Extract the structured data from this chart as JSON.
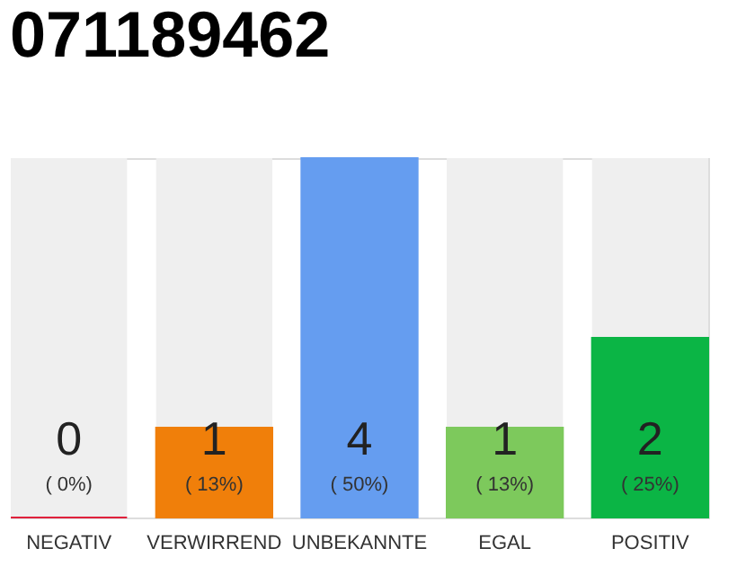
{
  "chart_data": {
    "type": "bar",
    "title": "071189462",
    "categories": [
      "NEGATIV",
      "VERWIRREND",
      "UNBEKANNTE",
      "EGAL",
      "POSITIV"
    ],
    "values": [
      0,
      1,
      4,
      1,
      2
    ],
    "colors": [
      "#e0213c",
      "#f07f0a",
      "#659df0",
      "#7dc95c",
      "#0bb545"
    ],
    "tick_labels": "x",
    "value_labels": [
      "0",
      "1",
      "4",
      "1",
      "2"
    ],
    "annotations": [
      "( 0%)",
      "( 13%)",
      "( 50%)",
      "( 13%)",
      "( 25%)"
    ]
  }
}
